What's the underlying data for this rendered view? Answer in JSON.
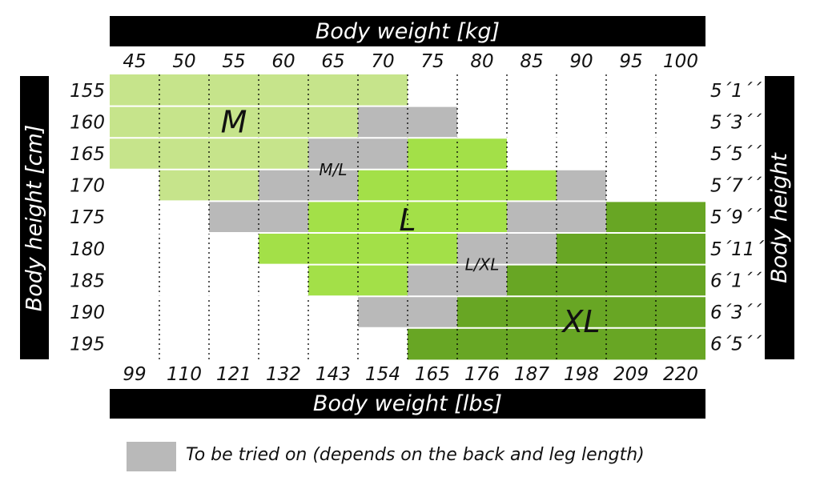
{
  "chart_data": {
    "type": "heatmap",
    "top_axis_label": "Body weight [kg]",
    "bottom_axis_label": "Body weight [lbs]",
    "left_axis_label": "Body height [cm]",
    "right_axis_label": "Body height",
    "weights_kg": [
      "45",
      "50",
      "55",
      "60",
      "65",
      "70",
      "75",
      "80",
      "85",
      "90",
      "95",
      "100"
    ],
    "weights_lbs": [
      "99",
      "110",
      "121",
      "132",
      "143",
      "154",
      "165",
      "176",
      "187",
      "198",
      "209",
      "220"
    ],
    "heights_cm": [
      "155",
      "160",
      "165",
      "170",
      "175",
      "180",
      "185",
      "190",
      "195"
    ],
    "heights_ft": [
      "5´1´´",
      "5´3´´",
      "5´5´´",
      "5´7´´",
      "5´9´´",
      "5´11´´",
      "6´1´´",
      "6´3´´",
      "6´5´´"
    ],
    "sizes": [
      [
        "M",
        "M",
        "M",
        "M",
        "M",
        "M",
        "",
        "",
        "",
        "",
        "",
        ""
      ],
      [
        "M",
        "M",
        "M",
        "M",
        "M",
        "M/L",
        "M/L",
        "",
        "",
        "",
        "",
        ""
      ],
      [
        "M",
        "M",
        "M",
        "M",
        "M/L",
        "M/L",
        "L",
        "L",
        "",
        "",
        "",
        ""
      ],
      [
        "",
        "M",
        "M",
        "M/L",
        "M/L",
        "L",
        "L",
        "L",
        "L",
        "L/XL",
        "",
        ""
      ],
      [
        "",
        "",
        "M/L",
        "M/L",
        "L",
        "L",
        "L",
        "L",
        "L/XL",
        "L/XL",
        "XL",
        "XL"
      ],
      [
        "",
        "",
        "",
        "L",
        "L",
        "L",
        "L",
        "L/XL",
        "L/XL",
        "XL",
        "XL",
        "XL"
      ],
      [
        "",
        "",
        "",
        "",
        "L",
        "L",
        "L/XL",
        "L/XL",
        "XL",
        "XL",
        "XL",
        "XL"
      ],
      [
        "",
        "",
        "",
        "",
        "",
        "L/XL",
        "L/XL",
        "XL",
        "XL",
        "XL",
        "XL",
        "XL"
      ],
      [
        "",
        "",
        "",
        "",
        "",
        "",
        "XL",
        "XL",
        "XL",
        "XL",
        "XL",
        "XL"
      ]
    ],
    "size_colors": {
      "M": "#c6e48b",
      "M/L": "#b9b9b9",
      "L": "#a3e048",
      "L/XL": "#b9b9b9",
      "XL": "#68a624"
    },
    "zone_labels": [
      {
        "text": "M",
        "col": 2.5,
        "row": 1.5
      },
      {
        "text": "M/L",
        "col": 4.5,
        "row": 3
      },
      {
        "text": "L",
        "col": 6,
        "row": 4.6
      },
      {
        "text": "L/XL",
        "col": 7.5,
        "row": 6
      },
      {
        "text": "XL",
        "col": 9.5,
        "row": 7.8
      }
    ],
    "legend": {
      "text": "To be tried on (depends on the back and leg length)",
      "color": "#b9b9b9"
    }
  }
}
